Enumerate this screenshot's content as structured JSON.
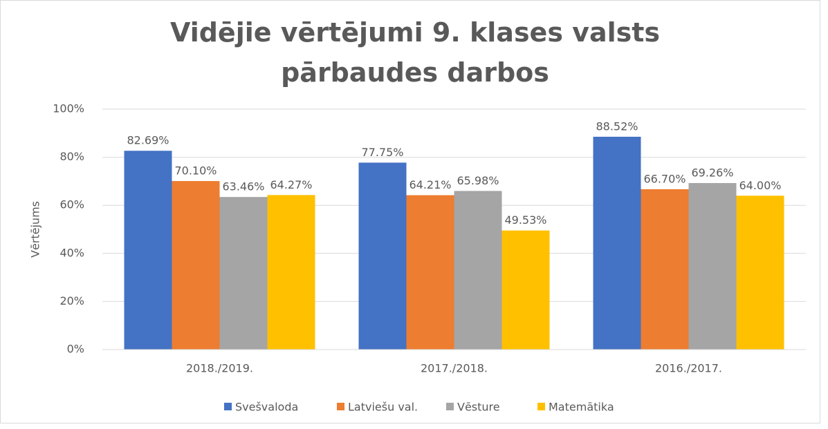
{
  "chart_data": {
    "type": "bar",
    "title": "Vidējie vērtējumi 9. klases valsts pārbaudes darbos",
    "y_label": "Vērtējums",
    "categories": [
      "2018./2019.",
      "2017./2018.",
      "2016./2017."
    ],
    "series": [
      {
        "name": "Svešvaloda",
        "color": "#4472c4",
        "values": [
          82.69,
          77.75,
          88.52
        ],
        "value_labels": [
          "82.69%",
          "77.75%",
          "88.52%"
        ]
      },
      {
        "name": "Latviešu val.",
        "color": "#ed7d31",
        "values": [
          70.1,
          64.21,
          66.7
        ],
        "value_labels": [
          "70.10%",
          "64.21%",
          "66.70%"
        ]
      },
      {
        "name": "Vēsture",
        "color": "#a5a5a5",
        "values": [
          63.46,
          65.98,
          69.26
        ],
        "value_labels": [
          "63.46%",
          "65.98%",
          "69.26%"
        ]
      },
      {
        "name": "Matemātika",
        "color": "#ffc000",
        "values": [
          64.27,
          49.53,
          64.0
        ],
        "value_labels": [
          "64.27%",
          "49.53%",
          "64.00%"
        ]
      }
    ],
    "ylim": [
      0,
      100
    ],
    "yticks": [
      {
        "value": 0,
        "label": "0%"
      },
      {
        "value": 20,
        "label": "20%"
      },
      {
        "value": 40,
        "label": "40%"
      },
      {
        "value": 60,
        "label": "60%"
      },
      {
        "value": 80,
        "label": "80%"
      },
      {
        "value": 100,
        "label": "100%"
      }
    ],
    "grid": true,
    "legend": "bottom"
  }
}
